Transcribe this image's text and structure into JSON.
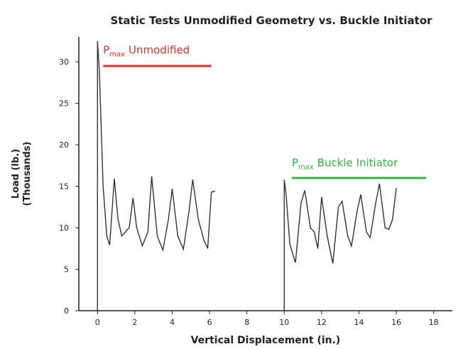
{
  "chart_data": {
    "type": "line",
    "title": "Static Tests Unmodified Geometry vs. Buckle Initiator",
    "xlabel": "Vertical Displacement (in.)",
    "ylabel": [
      "Load (lb.)",
      "(Thousands)"
    ],
    "xlim": [
      -1,
      19
    ],
    "ylim": [
      0,
      33
    ],
    "xticks": [
      0,
      2,
      4,
      6,
      8,
      10,
      12,
      14,
      16,
      18
    ],
    "yticks": [
      0,
      5,
      10,
      15,
      20,
      25,
      30
    ],
    "grid": false,
    "series": [
      {
        "name": "Unmodified",
        "color": "#333333",
        "x": [
          0,
          0,
          0.1,
          0.3,
          0.5,
          0.65,
          0.9,
          1.1,
          1.3,
          1.5,
          1.7,
          1.9,
          2.1,
          2.4,
          2.7,
          2.9,
          3.2,
          3.5,
          3.8,
          4.0,
          4.3,
          4.6,
          4.9,
          5.1,
          5.4,
          5.7,
          5.9,
          6.1,
          6.3
        ],
        "values": [
          0,
          32.5,
          29,
          15,
          9,
          7.9,
          15.9,
          11,
          9,
          9.5,
          10,
          13.6,
          10,
          7.8,
          9.5,
          16.2,
          9,
          7.3,
          11,
          14.7,
          9,
          7.4,
          12,
          15.8,
          11,
          8.5,
          7.5,
          14.3,
          14.4
        ]
      },
      {
        "name": "Buckle Initiator",
        "color": "#333333",
        "x": [
          10,
          10,
          10.1,
          10.3,
          10.6,
          10.9,
          11.1,
          11.4,
          11.6,
          11.8,
          12.0,
          12.3,
          12.6,
          12.9,
          13.1,
          13.4,
          13.6,
          13.9,
          14.1,
          14.4,
          14.6,
          14.9,
          15.1,
          15.4,
          15.6,
          15.8,
          16.0
        ],
        "values": [
          0,
          15.8,
          14,
          8,
          5.8,
          13,
          14.5,
          10,
          9.5,
          7.5,
          13.7,
          9,
          5.7,
          12.5,
          13.2,
          9,
          7.8,
          12,
          14,
          9.5,
          8.8,
          13,
          15.3,
          10,
          9.8,
          11,
          14.8
        ]
      }
    ],
    "annotations": [
      {
        "base": "P",
        "sub": "max",
        "text": "Unmodified",
        "color": "#e8302a"
      },
      {
        "base": "P",
        "sub": "max",
        "text": "Buckle Initiator",
        "color": "#2db83a"
      }
    ]
  }
}
